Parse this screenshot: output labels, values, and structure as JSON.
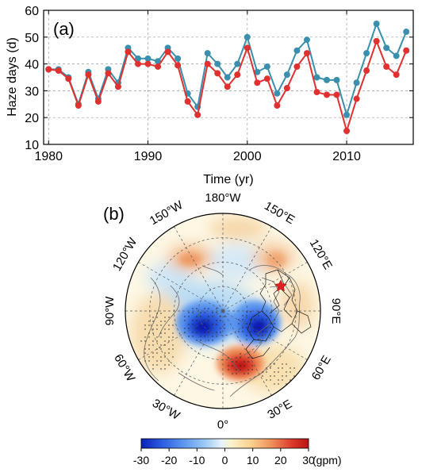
{
  "chart_data": [
    {
      "type": "line",
      "panel_label": "(a)",
      "xlabel": "Time (yr)",
      "ylabel": "Haze days (d)",
      "xlim": [
        1979.5,
        2016.7
      ],
      "ylim": [
        10,
        60
      ],
      "x_ticks": [
        "1980",
        "1990",
        "2000",
        "2010"
      ],
      "y_ticks": [
        "10",
        "20",
        "30",
        "40",
        "50",
        "60"
      ],
      "x": [
        1980,
        1981,
        1982,
        1983,
        1984,
        1985,
        1986,
        1987,
        1988,
        1989,
        1990,
        1991,
        1992,
        1993,
        1994,
        1995,
        1996,
        1997,
        1998,
        1999,
        2000,
        2001,
        2002,
        2003,
        2004,
        2005,
        2006,
        2007,
        2008,
        2009,
        2010,
        2011,
        2012,
        2013,
        2014,
        2015,
        2016
      ],
      "series": [
        {
          "color": "#3a8fae",
          "values": [
            38,
            38,
            35,
            25,
            37,
            27,
            38,
            33,
            46,
            42,
            42,
            41,
            46,
            42,
            29,
            24,
            44,
            40,
            35,
            40,
            50,
            37,
            39,
            29,
            36,
            45,
            49,
            35,
            34,
            34,
            21,
            33,
            44,
            55,
            46,
            43,
            52
          ]
        },
        {
          "color": "#e03030",
          "values": [
            38,
            37.5,
            34.5,
            24.5,
            36,
            26,
            36.5,
            31.5,
            44.5,
            40,
            40,
            39,
            44.5,
            39.5,
            26,
            21,
            40,
            36.5,
            31.5,
            36,
            46,
            33,
            34.5,
            24.5,
            31,
            39,
            44,
            29.5,
            28.5,
            28.5,
            15,
            27,
            37.5,
            48.5,
            39,
            36,
            45
          ]
        }
      ]
    },
    {
      "type": "heatmap",
      "projection": "north-polar-stereographic",
      "panel_label": "(b)",
      "longitude_labels": [
        "180°W",
        "150°E",
        "120°E",
        "90°E",
        "60°E",
        "30°E",
        "0°",
        "30°W",
        "60°W",
        "90°W",
        "120°W",
        "150°W"
      ],
      "colorbar": {
        "ticks": [
          "-30",
          "-20",
          "-10",
          "0",
          "10",
          "20",
          "30"
        ],
        "range": [
          -30,
          30
        ],
        "unit": "(gpm)",
        "colors": [
          "#0a1fb8",
          "#2a5be0",
          "#5a95ee",
          "#9bc8f4",
          "#d8ecf8",
          "#fbf2c8",
          "#f8cf8e",
          "#ef8f5a",
          "#dc3a2c",
          "#b81414"
        ]
      },
      "anomaly_centers": [
        {
          "label": "negative",
          "lon": -20,
          "lat": 65,
          "value": -30
        },
        {
          "label": "negative",
          "lon": 60,
          "lat": 68,
          "value": -28
        },
        {
          "label": "positive",
          "lon": 10,
          "lat": 45,
          "value": 28
        },
        {
          "label": "positive",
          "lon": 160,
          "lat": 55,
          "value": 10
        },
        {
          "label": "positive",
          "lon": -160,
          "lat": 50,
          "value": 9
        },
        {
          "label": "positive",
          "lon": -70,
          "lat": 40,
          "value": 8
        },
        {
          "label": "positive",
          "lon": 80,
          "lat": 35,
          "value": 6
        }
      ]
    }
  ]
}
